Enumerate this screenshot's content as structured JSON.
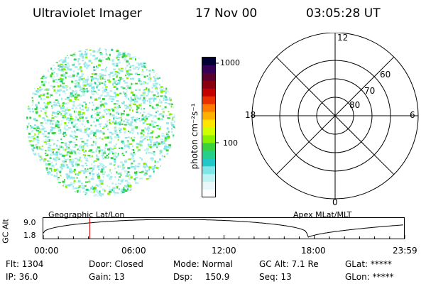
{
  "header": {
    "instrument": "Ultraviolet Imager",
    "date": "17 Nov 00",
    "time": "03:05:28 UT"
  },
  "colorbar": {
    "unit_label": "photon cm⁻²s⁻¹",
    "ticks": [
      "1000",
      "100"
    ],
    "colors": [
      "#000033",
      "#330055",
      "#5a0030",
      "#8a0010",
      "#c40000",
      "#e83000",
      "#ff7a00",
      "#ffb000",
      "#ffe600",
      "#cfff00",
      "#88f000",
      "#3ad23a",
      "#26d08a",
      "#20c8c8",
      "#7ee6e6",
      "#bff2f2",
      "#e8f8f8",
      "#ffffff"
    ]
  },
  "polar": {
    "mlt_labels": [
      "12",
      "18",
      "6",
      "0"
    ],
    "lat_labels": [
      "60",
      "70",
      "80"
    ]
  },
  "timeline": {
    "ylabel": "GC Alt",
    "ytick_top": "9.0",
    "ytick_bottom": "1.8",
    "left_caption": "Geographic Lat/Lon",
    "right_caption": "Apex MLat/MLT",
    "xticks": [
      "00:00",
      "06:00",
      "12:00",
      "18:00",
      "23:59"
    ],
    "marker_time": "03:05:28"
  },
  "info": {
    "flt": "Flt: 1304",
    "ip": "IP: 36.0",
    "door": "Door: Closed",
    "gain": "Gain: 13",
    "mode": "Mode: Normal",
    "dsp": "Dsp:",
    "dsp_value": "150.9",
    "gc_alt": "GC Alt: 7.1 Re",
    "seq": "Seq: 13",
    "glat": "GLat: *****",
    "glon": "GLon: *****"
  }
}
